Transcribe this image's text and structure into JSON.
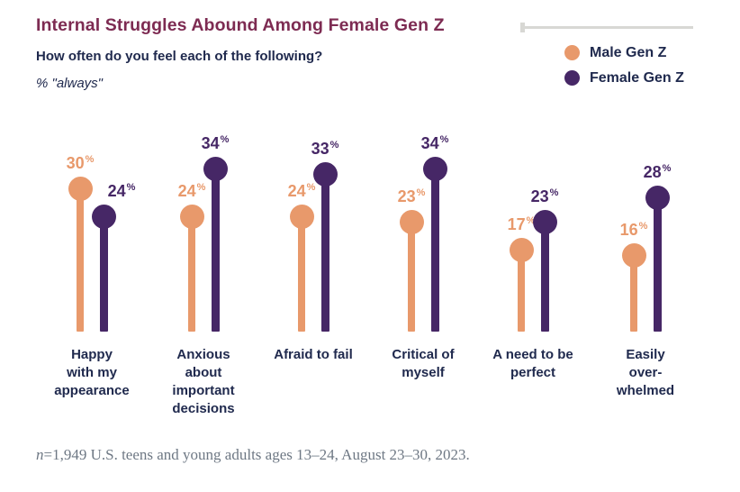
{
  "header": {
    "title": "Internal Struggles Abound Among Female Gen Z",
    "subtitle": "How often do you feel each of the following?",
    "unit_note": "% \"always\""
  },
  "legend": {
    "items": [
      {
        "label": "Male Gen Z",
        "color": "#E8996B"
      },
      {
        "label": "Female Gen Z",
        "color": "#462766"
      }
    ]
  },
  "chart_data": {
    "type": "bar",
    "style": "lollipop",
    "title": "Internal Struggles Abound Among Female Gen Z",
    "question": "How often do you feel each of the following?",
    "unit": "% \"always\"",
    "categories": [
      "Happy with my appearance",
      "Anxious about important decisions",
      "Afraid to fail",
      "Critical of myself",
      "A need to be perfect",
      "Easily over-whelmed"
    ],
    "category_lines": [
      [
        "Happy",
        "with my",
        "appearance"
      ],
      [
        "Anxious",
        "about",
        "important",
        "decisions"
      ],
      [
        "Afraid to fail"
      ],
      [
        "Critical of",
        "myself"
      ],
      [
        "A need to be",
        "perfect"
      ],
      [
        "Easily",
        "over-",
        "whelmed"
      ]
    ],
    "series": [
      {
        "name": "Male Gen Z",
        "color": "#E8996B",
        "values": [
          30,
          24,
          24,
          23,
          17,
          16
        ]
      },
      {
        "name": "Female Gen Z",
        "color": "#462766",
        "values": [
          24,
          34,
          33,
          34,
          23,
          28
        ]
      }
    ],
    "value_suffix": "%",
    "ylim": [
      0,
      40
    ],
    "grid": false,
    "axes_shown": false,
    "legend_position": "top-right"
  },
  "footnote": {
    "n": "n",
    "rest": "=1,949 U.S. teens and young adults ages 13–24, August 23–30, 2023."
  },
  "colors": {
    "title": "#7D2B52",
    "text_navy": "#202A4E",
    "male_orange": "#E8996B",
    "female_purple": "#462766",
    "rule_gray": "#D8D8D4",
    "footnote_gray": "#6E7884"
  }
}
